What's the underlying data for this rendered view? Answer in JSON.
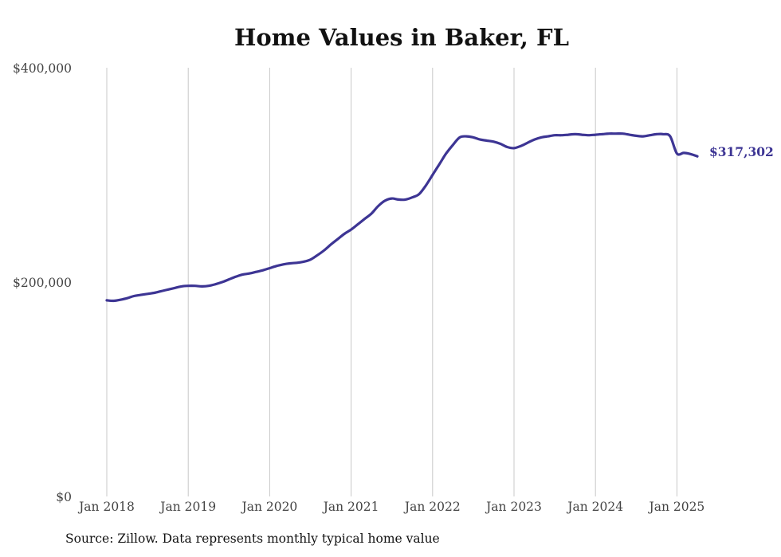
{
  "chart_data": {
    "type": "line",
    "title": "Home Values in Baker, FL",
    "source": "Source: Zillow. Data represents monthly typical home value",
    "ylim": [
      0,
      400000
    ],
    "y_ticks": [
      0,
      200000,
      400000
    ],
    "y_tick_labels": [
      "$0",
      "$200,000",
      "$400,000"
    ],
    "x_ticks": [
      "2018-01",
      "2019-01",
      "2020-01",
      "2021-01",
      "2022-01",
      "2023-01",
      "2024-01",
      "2025-01"
    ],
    "x_tick_labels": [
      "Jan 2018",
      "Jan 2019",
      "Jan 2020",
      "Jan 2021",
      "Jan 2022",
      "Jan 2023",
      "Jan 2024",
      "Jan 2025"
    ],
    "grid": "vertical",
    "line_color": "#3d3594",
    "end_label": "$317,302",
    "series": [
      {
        "x": [
          "2018-01",
          "2018-02",
          "2018-03",
          "2018-04",
          "2018-05",
          "2018-06",
          "2018-07",
          "2018-08",
          "2018-09",
          "2018-10",
          "2018-11",
          "2018-12",
          "2019-01",
          "2019-02",
          "2019-03",
          "2019-04",
          "2019-05",
          "2019-06",
          "2019-07",
          "2019-08",
          "2019-09",
          "2019-10",
          "2019-11",
          "2019-12",
          "2020-01",
          "2020-02",
          "2020-03",
          "2020-04",
          "2020-05",
          "2020-06",
          "2020-07",
          "2020-08",
          "2020-09",
          "2020-10",
          "2020-11",
          "2020-12",
          "2021-01",
          "2021-02",
          "2021-03",
          "2021-04",
          "2021-05",
          "2021-06",
          "2021-07",
          "2021-08",
          "2021-09",
          "2021-10",
          "2021-11",
          "2021-12",
          "2022-01",
          "2022-02",
          "2022-03",
          "2022-04",
          "2022-05",
          "2022-06",
          "2022-07",
          "2022-08",
          "2022-09",
          "2022-10",
          "2022-11",
          "2022-12",
          "2023-01",
          "2023-02",
          "2023-03",
          "2023-04",
          "2023-05",
          "2023-06",
          "2023-07",
          "2023-08",
          "2023-09",
          "2023-10",
          "2023-11",
          "2023-12",
          "2024-01",
          "2024-02",
          "2024-03",
          "2024-04",
          "2024-05",
          "2024-06",
          "2024-07",
          "2024-08",
          "2024-09",
          "2024-10",
          "2024-11",
          "2024-12",
          "2025-01",
          "2025-02",
          "2025-03",
          "2025-04"
        ],
        "values": [
          183000,
          182500,
          183500,
          185000,
          187000,
          188000,
          189000,
          190000,
          191500,
          193000,
          194500,
          196000,
          196500,
          196500,
          196000,
          196500,
          198000,
          200000,
          202500,
          205000,
          207000,
          208000,
          209500,
          211000,
          213000,
          215000,
          216500,
          217500,
          218000,
          219000,
          221000,
          225000,
          229500,
          235000,
          240000,
          245000,
          249000,
          254000,
          259000,
          264000,
          271000,
          276000,
          278000,
          277000,
          277000,
          279000,
          282000,
          290000,
          300000,
          310000,
          320000,
          328000,
          335000,
          336000,
          335000,
          333000,
          332000,
          331000,
          329000,
          326000,
          325000,
          327000,
          330000,
          333000,
          335000,
          336000,
          337000,
          337000,
          337500,
          338000,
          337500,
          337000,
          337500,
          338000,
          338500,
          338500,
          338500,
          337500,
          336500,
          336000,
          337000,
          338000,
          338000,
          336000,
          320000,
          320500,
          319500,
          317302
        ]
      }
    ]
  }
}
